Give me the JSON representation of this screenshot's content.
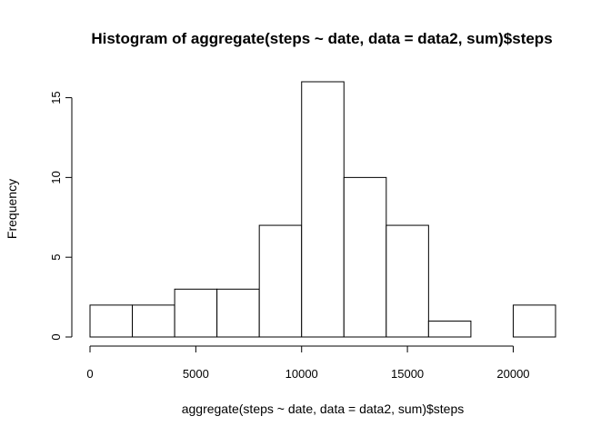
{
  "chart_data": {
    "type": "bar",
    "title": "Histogram of aggregate(steps ~ date, data = data2, sum)$steps",
    "xlabel": "aggregate(steps ~ date, data = data2, sum)$steps",
    "ylabel": "Frequency",
    "bins": [
      {
        "from": 0,
        "to": 2000,
        "count": 2
      },
      {
        "from": 2000,
        "to": 4000,
        "count": 2
      },
      {
        "from": 4000,
        "to": 6000,
        "count": 3
      },
      {
        "from": 6000,
        "to": 8000,
        "count": 3
      },
      {
        "from": 8000,
        "to": 10000,
        "count": 7
      },
      {
        "from": 10000,
        "to": 12000,
        "count": 16
      },
      {
        "from": 12000,
        "to": 14000,
        "count": 10
      },
      {
        "from": 14000,
        "to": 16000,
        "count": 7
      },
      {
        "from": 16000,
        "to": 18000,
        "count": 1
      },
      {
        "from": 18000,
        "to": 20000,
        "count": 0
      },
      {
        "from": 20000,
        "to": 22000,
        "count": 2
      }
    ],
    "xlim": [
      0,
      22000
    ],
    "ylim": [
      0,
      16
    ],
    "xticks": [
      "0",
      "5000",
      "10000",
      "15000",
      "20000"
    ],
    "xtick_values": [
      0,
      5000,
      10000,
      15000,
      20000
    ],
    "yticks": [
      "0",
      "5",
      "10",
      "15"
    ],
    "ytick_values": [
      0,
      5,
      10,
      15
    ],
    "grid": false,
    "colors": {
      "bar_fill": "#ffffff",
      "bar_stroke": "#000000",
      "axis": "#000000"
    }
  }
}
